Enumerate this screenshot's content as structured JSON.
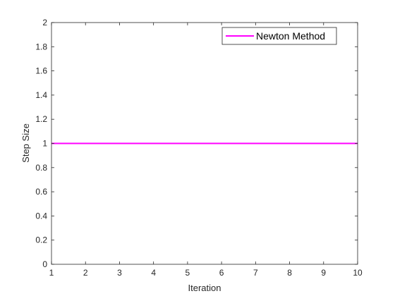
{
  "chart_data": {
    "type": "line",
    "title": "",
    "xlabel": "Iteration",
    "ylabel": "Step Size",
    "xlim": [
      1,
      10
    ],
    "ylim": [
      0,
      2
    ],
    "xticks": [
      1,
      2,
      3,
      4,
      5,
      6,
      7,
      8,
      9,
      10
    ],
    "yticks": [
      0,
      0.2,
      0.4,
      0.6,
      0.8,
      1,
      1.2,
      1.4,
      1.6,
      1.8,
      2
    ],
    "grid": false,
    "legend_position": "top-right",
    "series": [
      {
        "name": "Newton Method",
        "color": "#FF00FF",
        "x": [
          1,
          2,
          3,
          4,
          5,
          6,
          7,
          8,
          9,
          10
        ],
        "y": [
          1,
          1,
          1,
          1,
          1,
          1,
          1,
          1,
          1,
          1
        ]
      }
    ]
  }
}
